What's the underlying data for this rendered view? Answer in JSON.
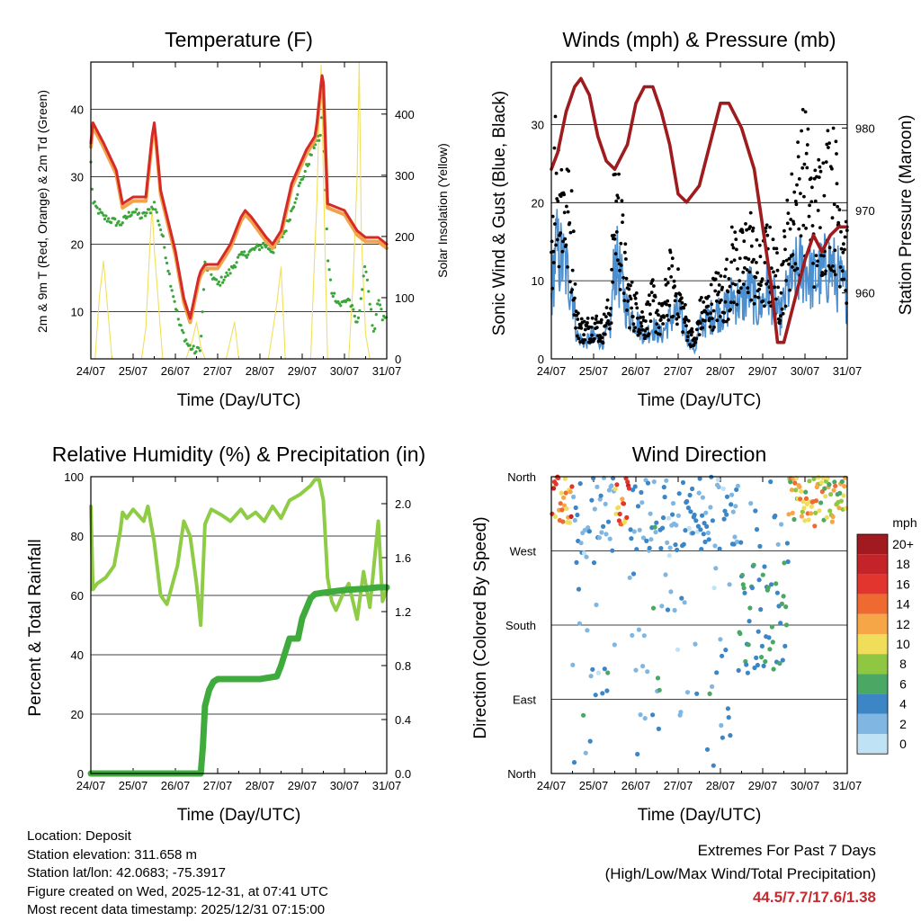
{
  "chart_data": [
    {
      "id": "temperature",
      "type": "line",
      "title": "Temperature (F)",
      "xlabel": "Time (Day/UTC)",
      "ylabel_left": "2m & 9m T (Red, Orange) & 2m Td (Green)",
      "ylabel_right": "Solar Insolation (Yellow)",
      "x_ticks": [
        "24/07",
        "25/07",
        "26/07",
        "27/07",
        "28/07",
        "29/07",
        "30/07",
        "31/07"
      ],
      "xlim": [
        0,
        7
      ],
      "ylim_left": [
        3,
        47
      ],
      "ylim_right": [
        0,
        485
      ],
      "y_ticks_left": [
        10,
        20,
        30,
        40
      ],
      "y_ticks_right": [
        0,
        100,
        200,
        300,
        400
      ],
      "colors": {
        "t2m": "#d42a28",
        "t9m": "#f4a24a",
        "td": "#3aa63a",
        "solar": "#f2df5a"
      },
      "series": [
        {
          "name": "2m T",
          "x": [
            0,
            0.05,
            0.3,
            0.6,
            0.75,
            1,
            1.1,
            1.3,
            1.45,
            1.5,
            1.55,
            1.65,
            2,
            2.2,
            2.35,
            2.55,
            2.6,
            2.7,
            3,
            3.3,
            3.55,
            3.65,
            3.8,
            4.15,
            4.3,
            4.5,
            4.75,
            5.1,
            5.3,
            5.35,
            5.45,
            5.47,
            5.5,
            5.6,
            6,
            6.3,
            6.5,
            6.8,
            7
          ],
          "y": [
            35,
            38,
            35,
            31,
            26,
            27,
            27,
            27,
            36,
            38,
            35,
            28,
            19,
            12,
            9,
            15,
            16,
            17,
            17,
            20,
            24,
            25,
            24,
            21,
            20,
            22,
            29,
            34,
            36,
            38,
            44,
            45,
            44,
            26,
            25,
            22,
            21,
            21,
            20
          ]
        },
        {
          "name": "2m Td",
          "x": [
            0,
            0.05,
            0.3,
            0.7,
            1,
            1.2,
            1.4,
            1.5,
            1.7,
            1.9,
            2.1,
            2.3,
            2.5,
            2.6,
            2.7,
            3,
            3.3,
            3.5,
            3.8,
            4.1,
            4.3,
            4.6,
            4.9,
            5.2,
            5.3,
            5.45,
            5.48,
            5.5,
            5.6,
            5.7,
            5.9,
            6.1,
            6.3,
            6.5,
            6.7,
            6.8,
            6.9,
            7
          ],
          "y": [
            32,
            26,
            24,
            23,
            25,
            24,
            25,
            26,
            21,
            14,
            8,
            5,
            4,
            5,
            17,
            14,
            16,
            18,
            19,
            20,
            19,
            22,
            28,
            33,
            35,
            36,
            45,
            38,
            18,
            13,
            11,
            12,
            8,
            17,
            6,
            12,
            9,
            9
          ]
        },
        {
          "name": "Solar",
          "x": [
            0,
            0.1,
            0.2,
            0.3,
            0.4,
            0.5,
            1.2,
            1.3,
            1.4,
            1.45,
            1.5,
            1.6,
            1.7,
            2.25,
            2.4,
            2.5,
            2.6,
            2.7,
            3.2,
            3.3,
            3.4,
            3.5,
            4.2,
            4.4,
            4.5,
            4.6,
            5.2,
            5.3,
            5.35,
            5.4,
            5.45,
            5.5,
            5.6,
            6.1,
            6.2,
            6.3,
            6.35,
            6.4,
            6.5,
            6.6,
            7
          ],
          "y": [
            0,
            0,
            100,
            160,
            80,
            0,
            0,
            50,
            190,
            250,
            180,
            90,
            0,
            0,
            30,
            60,
            20,
            0,
            0,
            30,
            60,
            0,
            0,
            90,
            150,
            0,
            0,
            180,
            260,
            400,
            480,
            300,
            0,
            0,
            120,
            300,
            485,
            200,
            40,
            0,
            0
          ]
        }
      ]
    },
    {
      "id": "winds",
      "type": "line",
      "title": "Winds (mph) & Pressure (mb)",
      "xlabel": "Time (Day/UTC)",
      "ylabel_left": "Sonic Wind & Gust (Blue, Black)",
      "ylabel_right": "Station Pressure (Maroon)",
      "x_ticks": [
        "24/07",
        "25/07",
        "26/07",
        "27/07",
        "28/07",
        "29/07",
        "30/07",
        "31/07"
      ],
      "xlim": [
        0,
        7
      ],
      "ylim_left": [
        0,
        38
      ],
      "ylim_right": [
        952,
        988
      ],
      "y_ticks_left": [
        0,
        10,
        20,
        30
      ],
      "y_ticks_right": [
        960,
        970,
        980
      ],
      "colors": {
        "wind": "#4b8fd0",
        "gust": "#000000",
        "pressure": "#9e1b1e"
      },
      "series": [
        {
          "name": "Sonic Wind",
          "x": [
            0,
            0.1,
            0.3,
            0.5,
            0.6,
            0.8,
            1,
            1.2,
            1.4,
            1.5,
            1.6,
            1.8,
            2,
            2.2,
            2.4,
            2.6,
            2.8,
            3,
            3.2,
            3.4,
            3.5,
            3.7,
            3.9,
            4.1,
            4.3,
            4.5,
            4.7,
            4.9,
            5.1,
            5.3,
            5.4,
            5.6,
            5.8,
            6,
            6.2,
            6.4,
            6.6,
            6.8,
            7
          ],
          "y": [
            8,
            14,
            12,
            9,
            3,
            2,
            3,
            2,
            4,
            13,
            11,
            6,
            5,
            3,
            4,
            3,
            5,
            6,
            3,
            1,
            4,
            5,
            6,
            6,
            8,
            7,
            9,
            6,
            9,
            7,
            5,
            9,
            11,
            12,
            10,
            11,
            12,
            10,
            8
          ]
        },
        {
          "name": "Gust",
          "x": [
            0,
            0.1,
            0.3,
            0.5,
            0.6,
            0.8,
            1,
            1.2,
            1.4,
            1.5,
            1.6,
            1.8,
            2,
            2.2,
            2.4,
            2.6,
            2.8,
            3,
            3.2,
            3.4,
            3.5,
            3.7,
            3.9,
            4.1,
            4.3,
            4.5,
            4.7,
            4.9,
            5.1,
            5.3,
            5.4,
            5.6,
            5.8,
            6,
            6.2,
            6.4,
            6.6,
            6.8,
            7
          ],
          "y": [
            16,
            27,
            22,
            17,
            5,
            4,
            5,
            4,
            7,
            22,
            20,
            9,
            7,
            5,
            8,
            5,
            11,
            9,
            5,
            2,
            6,
            7,
            9,
            9,
            14,
            13,
            16,
            11,
            14,
            12,
            9,
            17,
            22,
            26,
            19,
            22,
            25,
            21,
            14
          ]
        },
        {
          "name": "Pressure",
          "x": [
            0,
            0.15,
            0.35,
            0.55,
            0.7,
            0.9,
            1.1,
            1.3,
            1.5,
            1.8,
            2,
            2.2,
            2.4,
            2.6,
            2.8,
            3,
            3.2,
            3.5,
            3.8,
            4,
            4.2,
            4.5,
            4.8,
            5,
            5.2,
            5.35,
            5.5,
            5.8,
            6,
            6.2,
            6.4,
            6.6,
            6.8,
            7
          ],
          "y": [
            975,
            977,
            982,
            985,
            986,
            984,
            979,
            976,
            975,
            978,
            983,
            985,
            985,
            982,
            978,
            972,
            971,
            973,
            979,
            983,
            983,
            980,
            975,
            968,
            961,
            954,
            954,
            960,
            964,
            967,
            965,
            967,
            968,
            968
          ]
        }
      ]
    },
    {
      "id": "humidity",
      "type": "line",
      "title": "Relative Humidity (%) & Precipitation (in)",
      "xlabel": "Time (Day/UTC)",
      "ylabel_left": "Percent & Total Rainfall",
      "x_ticks": [
        "24/07",
        "25/07",
        "26/07",
        "27/07",
        "28/07",
        "29/07",
        "30/07",
        "31/07"
      ],
      "xlim": [
        0,
        7
      ],
      "ylim_left": [
        0,
        100
      ],
      "ylim_right": [
        0,
        2.2
      ],
      "y_ticks_left": [
        0,
        20,
        40,
        60,
        80,
        100
      ],
      "y_ticks_right": [
        "0.0",
        "0.4",
        "0.8",
        "1.2",
        "1.6",
        "2.0"
      ],
      "colors": {
        "rh": "#8fcc45",
        "precip": "#3fab3d"
      },
      "series": [
        {
          "name": "RH",
          "x": [
            0,
            0.05,
            0.15,
            0.35,
            0.55,
            0.7,
            0.75,
            0.85,
            1,
            1.25,
            1.35,
            1.5,
            1.65,
            1.8,
            2.05,
            2.2,
            2.35,
            2.5,
            2.6,
            2.7,
            2.85,
            3.1,
            3.3,
            3.55,
            3.7,
            3.9,
            4.1,
            4.3,
            4.5,
            4.7,
            4.95,
            5.2,
            5.3,
            5.4,
            5.5,
            5.6,
            5.7,
            5.8,
            5.95,
            6.1,
            6.3,
            6.45,
            6.6,
            6.8,
            6.9,
            7
          ],
          "y": [
            90,
            62,
            64,
            66,
            70,
            82,
            88,
            86,
            89,
            85,
            90,
            78,
            60,
            57,
            70,
            85,
            80,
            64,
            50,
            84,
            89,
            87,
            85,
            89,
            86,
            88,
            85,
            90,
            86,
            92,
            94,
            97,
            99,
            99,
            92,
            66,
            58,
            55,
            60,
            64,
            52,
            68,
            56,
            85,
            58,
            62
          ]
        },
        {
          "name": "Precip",
          "x": [
            0,
            1,
            2,
            2.6,
            2.65,
            2.7,
            2.8,
            2.9,
            3,
            3.5,
            4,
            4.4,
            4.5,
            4.6,
            4.7,
            4.9,
            5,
            5.2,
            5.3,
            5.5,
            6,
            6.5,
            6.8,
            7
          ],
          "y": [
            0,
            0,
            0,
            0,
            0.2,
            0.5,
            0.62,
            0.68,
            0.7,
            0.7,
            0.7,
            0.72,
            0.8,
            0.9,
            1.0,
            1.0,
            1.15,
            1.3,
            1.33,
            1.34,
            1.36,
            1.37,
            1.38,
            1.38
          ]
        }
      ]
    },
    {
      "id": "direction",
      "type": "scatter",
      "title": "Wind Direction",
      "xlabel": "Time (Day/UTC)",
      "ylabel_left": "Direction (Colored By Speed)",
      "x_ticks": [
        "24/07",
        "25/07",
        "26/07",
        "27/07",
        "28/07",
        "29/07",
        "30/07",
        "31/07"
      ],
      "xlim": [
        0,
        7
      ],
      "ylim_left": [
        0,
        360
      ],
      "y_ticks_labels": [
        "North",
        "East",
        "South",
        "West",
        "North"
      ],
      "y_ticks_values": [
        0,
        90,
        180,
        270,
        360
      ],
      "colorbar_title": "mph",
      "colorbar_labels": [
        "20+",
        "18",
        "16",
        "14",
        "12",
        "10",
        "8",
        "6",
        "4",
        "2",
        "0"
      ],
      "colorbar_colors": [
        "#a01a1f",
        "#c42429",
        "#e2352e",
        "#ef6a31",
        "#f6a646",
        "#f0dd5a",
        "#8fc642",
        "#4aa864",
        "#3c86c6",
        "#7fb7e2",
        "#bfe2f5"
      ]
    }
  ],
  "info": {
    "location": "Location: Deposit",
    "elevation": "Station elevation: 311.658 m",
    "latlon": "Station lat/lon: 42.0683; -75.3917",
    "created": "Figure created on Wed, 2025-12-31, at 07:41 UTC",
    "recent": "Most recent data timestamp: 2025/12/31 07:15:00"
  },
  "extremes": {
    "title": "Extremes For Past 7 Days",
    "subtitle": "(High/Low/Max Wind/Total Precipitation)",
    "values": "44.5/7.7/17.6/1.38"
  }
}
